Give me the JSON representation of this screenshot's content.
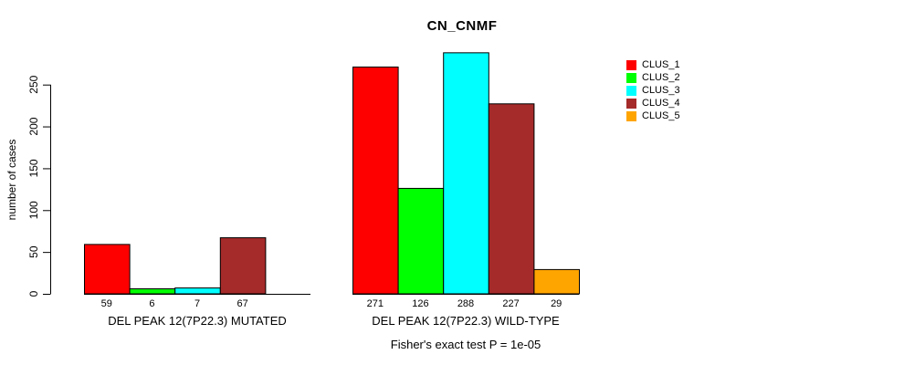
{
  "chart_data": {
    "type": "bar",
    "title": "CN_CNMF",
    "ylabel": "number of cases",
    "xlabel": "",
    "groups": [
      "DEL PEAK 12(7P22.3) MUTATED",
      "DEL PEAK 12(7P22.3) WILD-TYPE"
    ],
    "series": [
      {
        "name": "CLUS_1",
        "color": "#FF0000",
        "values": [
          59,
          271
        ]
      },
      {
        "name": "CLUS_2",
        "color": "#00FF00",
        "values": [
          6,
          126
        ]
      },
      {
        "name": "CLUS_3",
        "color": "#00FFFF",
        "values": [
          7,
          288
        ]
      },
      {
        "name": "CLUS_4",
        "color": "#A52A2A",
        "values": [
          67,
          227
        ]
      },
      {
        "name": "CLUS_5",
        "color": "#FFA500",
        "values": [
          0,
          29
        ]
      }
    ],
    "yticks": [
      0,
      50,
      100,
      150,
      200,
      250
    ],
    "ylim": [
      0,
      290
    ],
    "grid": false,
    "legend_position": "right-outside-top",
    "bar_value_labels": true,
    "annotation": "Fisher's exact test P = 1e-05"
  }
}
